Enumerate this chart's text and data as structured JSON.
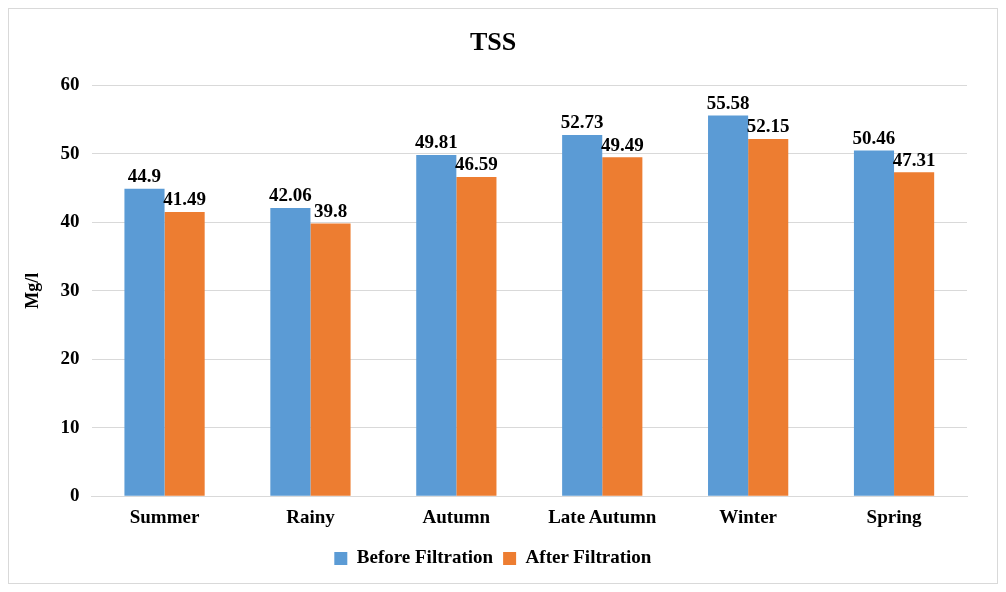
{
  "chart_data": {
    "type": "bar",
    "title": "TSS",
    "ylabel": "Mg/l",
    "categories": [
      "Summer",
      "Rainy",
      "Autumn",
      "Late Autumn",
      "Winter",
      "Spring"
    ],
    "series": [
      {
        "name": "Before Filtration",
        "color": "#5b9bd5",
        "values": [
          44.9,
          42.06,
          49.81,
          52.73,
          55.58,
          50.46
        ]
      },
      {
        "name": "After Filtration",
        "color": "#ed7d31",
        "values": [
          41.49,
          39.8,
          46.59,
          49.49,
          52.15,
          47.31
        ]
      }
    ],
    "ylim": [
      0,
      60
    ],
    "yticks": [
      0,
      10,
      20,
      30,
      40,
      50,
      60
    ],
    "grid": "y",
    "legend": "bottom",
    "data_labels": true
  }
}
